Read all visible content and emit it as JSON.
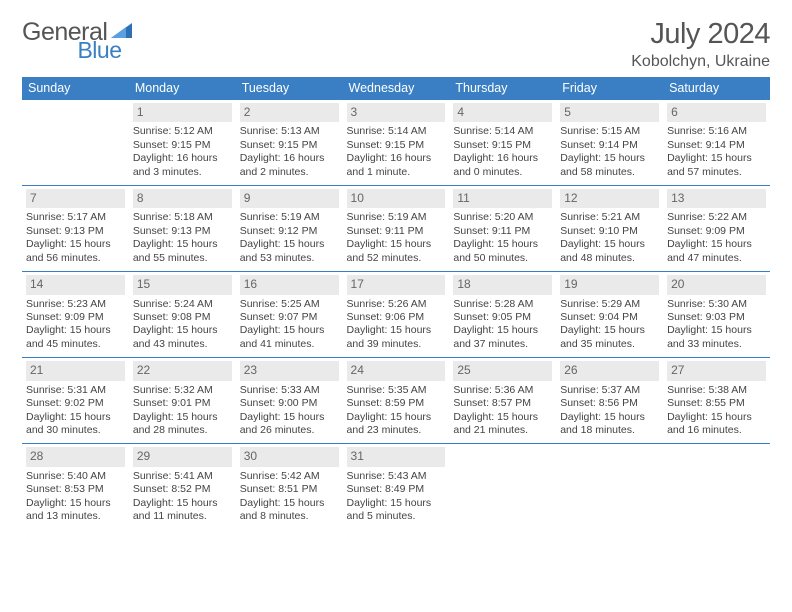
{
  "logo": {
    "text1": "General",
    "text2": "Blue"
  },
  "title": "July 2024",
  "location": "Kobolchyn, Ukraine",
  "colors": {
    "accent": "#3a7fc4",
    "daynum_bg": "#eaeaea",
    "text": "#444"
  },
  "day_headers": [
    "Sunday",
    "Monday",
    "Tuesday",
    "Wednesday",
    "Thursday",
    "Friday",
    "Saturday"
  ],
  "weeks": [
    [
      null,
      {
        "n": "1",
        "sr": "Sunrise: 5:12 AM",
        "ss": "Sunset: 9:15 PM",
        "d1": "Daylight: 16 hours",
        "d2": "and 3 minutes."
      },
      {
        "n": "2",
        "sr": "Sunrise: 5:13 AM",
        "ss": "Sunset: 9:15 PM",
        "d1": "Daylight: 16 hours",
        "d2": "and 2 minutes."
      },
      {
        "n": "3",
        "sr": "Sunrise: 5:14 AM",
        "ss": "Sunset: 9:15 PM",
        "d1": "Daylight: 16 hours",
        "d2": "and 1 minute."
      },
      {
        "n": "4",
        "sr": "Sunrise: 5:14 AM",
        "ss": "Sunset: 9:15 PM",
        "d1": "Daylight: 16 hours",
        "d2": "and 0 minutes."
      },
      {
        "n": "5",
        "sr": "Sunrise: 5:15 AM",
        "ss": "Sunset: 9:14 PM",
        "d1": "Daylight: 15 hours",
        "d2": "and 58 minutes."
      },
      {
        "n": "6",
        "sr": "Sunrise: 5:16 AM",
        "ss": "Sunset: 9:14 PM",
        "d1": "Daylight: 15 hours",
        "d2": "and 57 minutes."
      }
    ],
    [
      {
        "n": "7",
        "sr": "Sunrise: 5:17 AM",
        "ss": "Sunset: 9:13 PM",
        "d1": "Daylight: 15 hours",
        "d2": "and 56 minutes."
      },
      {
        "n": "8",
        "sr": "Sunrise: 5:18 AM",
        "ss": "Sunset: 9:13 PM",
        "d1": "Daylight: 15 hours",
        "d2": "and 55 minutes."
      },
      {
        "n": "9",
        "sr": "Sunrise: 5:19 AM",
        "ss": "Sunset: 9:12 PM",
        "d1": "Daylight: 15 hours",
        "d2": "and 53 minutes."
      },
      {
        "n": "10",
        "sr": "Sunrise: 5:19 AM",
        "ss": "Sunset: 9:11 PM",
        "d1": "Daylight: 15 hours",
        "d2": "and 52 minutes."
      },
      {
        "n": "11",
        "sr": "Sunrise: 5:20 AM",
        "ss": "Sunset: 9:11 PM",
        "d1": "Daylight: 15 hours",
        "d2": "and 50 minutes."
      },
      {
        "n": "12",
        "sr": "Sunrise: 5:21 AM",
        "ss": "Sunset: 9:10 PM",
        "d1": "Daylight: 15 hours",
        "d2": "and 48 minutes."
      },
      {
        "n": "13",
        "sr": "Sunrise: 5:22 AM",
        "ss": "Sunset: 9:09 PM",
        "d1": "Daylight: 15 hours",
        "d2": "and 47 minutes."
      }
    ],
    [
      {
        "n": "14",
        "sr": "Sunrise: 5:23 AM",
        "ss": "Sunset: 9:09 PM",
        "d1": "Daylight: 15 hours",
        "d2": "and 45 minutes."
      },
      {
        "n": "15",
        "sr": "Sunrise: 5:24 AM",
        "ss": "Sunset: 9:08 PM",
        "d1": "Daylight: 15 hours",
        "d2": "and 43 minutes."
      },
      {
        "n": "16",
        "sr": "Sunrise: 5:25 AM",
        "ss": "Sunset: 9:07 PM",
        "d1": "Daylight: 15 hours",
        "d2": "and 41 minutes."
      },
      {
        "n": "17",
        "sr": "Sunrise: 5:26 AM",
        "ss": "Sunset: 9:06 PM",
        "d1": "Daylight: 15 hours",
        "d2": "and 39 minutes."
      },
      {
        "n": "18",
        "sr": "Sunrise: 5:28 AM",
        "ss": "Sunset: 9:05 PM",
        "d1": "Daylight: 15 hours",
        "d2": "and 37 minutes."
      },
      {
        "n": "19",
        "sr": "Sunrise: 5:29 AM",
        "ss": "Sunset: 9:04 PM",
        "d1": "Daylight: 15 hours",
        "d2": "and 35 minutes."
      },
      {
        "n": "20",
        "sr": "Sunrise: 5:30 AM",
        "ss": "Sunset: 9:03 PM",
        "d1": "Daylight: 15 hours",
        "d2": "and 33 minutes."
      }
    ],
    [
      {
        "n": "21",
        "sr": "Sunrise: 5:31 AM",
        "ss": "Sunset: 9:02 PM",
        "d1": "Daylight: 15 hours",
        "d2": "and 30 minutes."
      },
      {
        "n": "22",
        "sr": "Sunrise: 5:32 AM",
        "ss": "Sunset: 9:01 PM",
        "d1": "Daylight: 15 hours",
        "d2": "and 28 minutes."
      },
      {
        "n": "23",
        "sr": "Sunrise: 5:33 AM",
        "ss": "Sunset: 9:00 PM",
        "d1": "Daylight: 15 hours",
        "d2": "and 26 minutes."
      },
      {
        "n": "24",
        "sr": "Sunrise: 5:35 AM",
        "ss": "Sunset: 8:59 PM",
        "d1": "Daylight: 15 hours",
        "d2": "and 23 minutes."
      },
      {
        "n": "25",
        "sr": "Sunrise: 5:36 AM",
        "ss": "Sunset: 8:57 PM",
        "d1": "Daylight: 15 hours",
        "d2": "and 21 minutes."
      },
      {
        "n": "26",
        "sr": "Sunrise: 5:37 AM",
        "ss": "Sunset: 8:56 PM",
        "d1": "Daylight: 15 hours",
        "d2": "and 18 minutes."
      },
      {
        "n": "27",
        "sr": "Sunrise: 5:38 AM",
        "ss": "Sunset: 8:55 PM",
        "d1": "Daylight: 15 hours",
        "d2": "and 16 minutes."
      }
    ],
    [
      {
        "n": "28",
        "sr": "Sunrise: 5:40 AM",
        "ss": "Sunset: 8:53 PM",
        "d1": "Daylight: 15 hours",
        "d2": "and 13 minutes."
      },
      {
        "n": "29",
        "sr": "Sunrise: 5:41 AM",
        "ss": "Sunset: 8:52 PM",
        "d1": "Daylight: 15 hours",
        "d2": "and 11 minutes."
      },
      {
        "n": "30",
        "sr": "Sunrise: 5:42 AM",
        "ss": "Sunset: 8:51 PM",
        "d1": "Daylight: 15 hours",
        "d2": "and 8 minutes."
      },
      {
        "n": "31",
        "sr": "Sunrise: 5:43 AM",
        "ss": "Sunset: 8:49 PM",
        "d1": "Daylight: 15 hours",
        "d2": "and 5 minutes."
      },
      null,
      null,
      null
    ]
  ]
}
